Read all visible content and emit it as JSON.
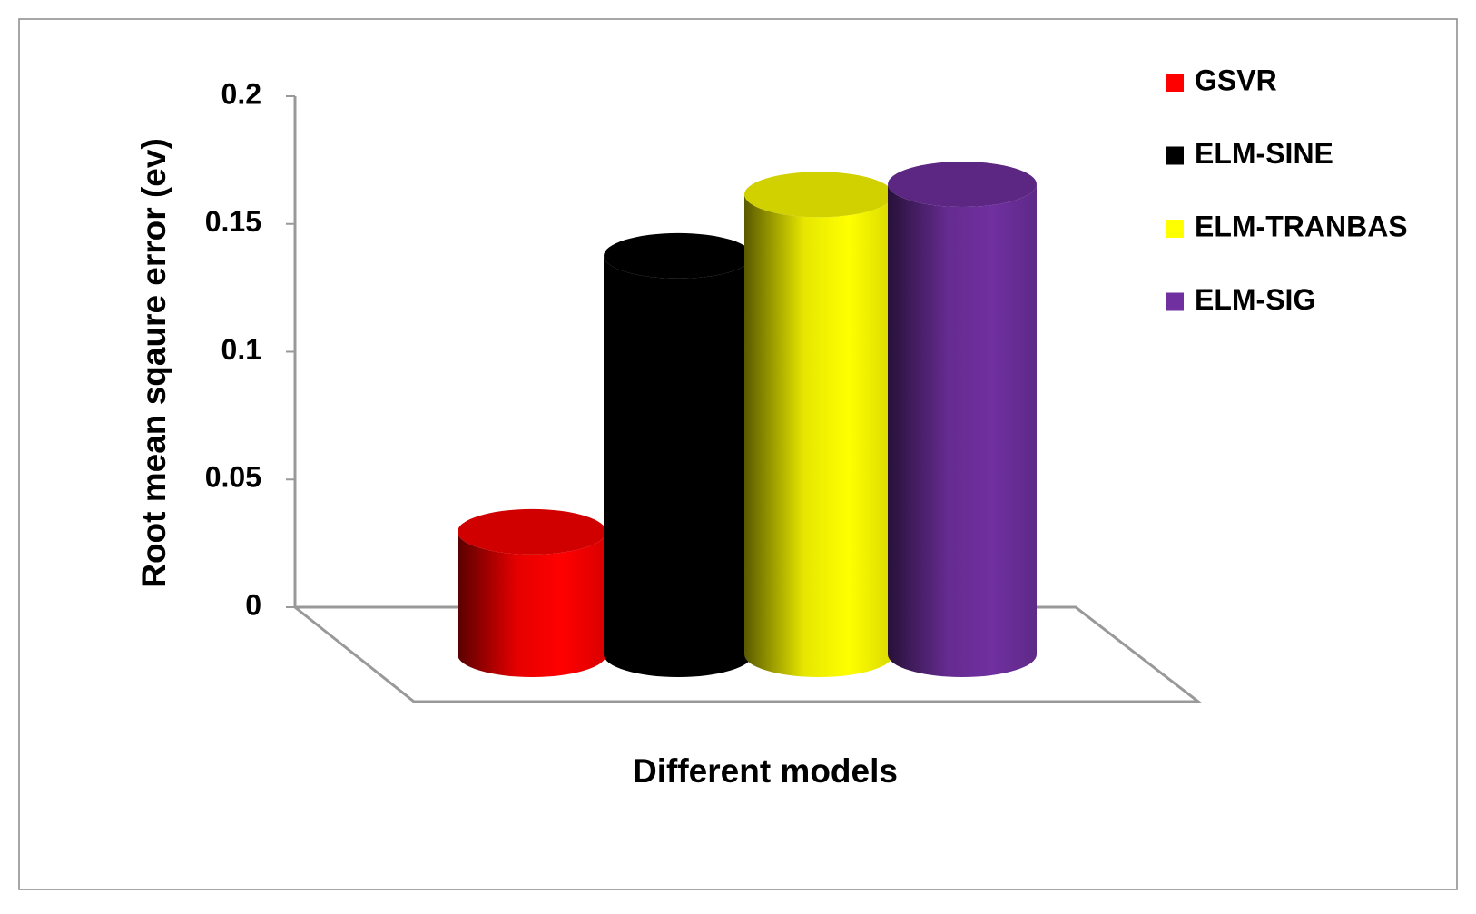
{
  "chart_data": {
    "type": "bar3d",
    "y_label": "Root mean sqaure error (ev)",
    "x_label": "Different models",
    "series": [
      {
        "name": "GSVR",
        "color": "#ff0000",
        "values": [
          0.048
        ]
      },
      {
        "name": "ELM-SINE",
        "color": "#000000",
        "values": [
          0.156
        ]
      },
      {
        "name": "ELM-TRANBAS",
        "color": "#ffff00",
        "values": [
          0.18
        ]
      },
      {
        "name": "ELM-SIG",
        "color": "#7030a0",
        "values": [
          0.184
        ]
      }
    ],
    "ylim": [
      0,
      0.2
    ],
    "yticks": [
      0,
      0.05,
      0.1,
      0.15,
      0.2
    ],
    "legend": "right"
  }
}
